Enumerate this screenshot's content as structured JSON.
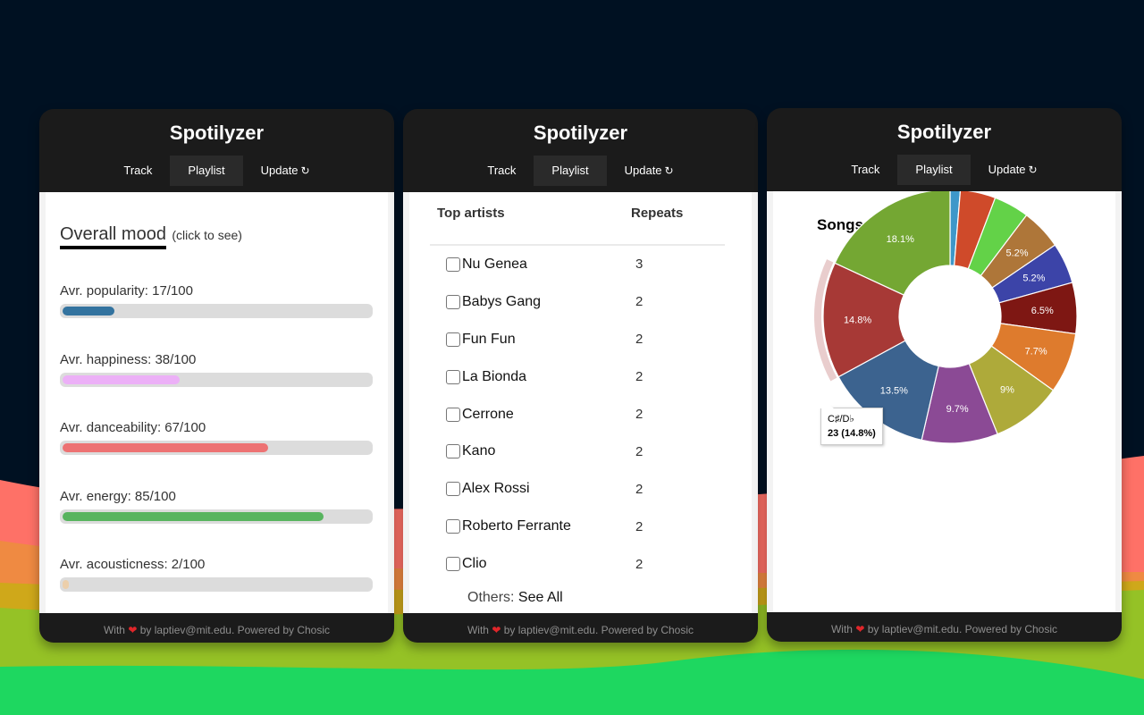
{
  "app": {
    "title": "Spotilyzer",
    "nav": [
      {
        "label": "Track",
        "active": false
      },
      {
        "label": "Playlist",
        "active": true
      },
      {
        "label": "Update",
        "icon": "refresh-icon"
      }
    ],
    "footer": {
      "prefix": "With",
      "heart": "❤",
      "suffix": "by laptiev@mit.edu. Powered by Chosic"
    }
  },
  "mood_panel": {
    "title": "Overall mood",
    "hint": "(click to see)",
    "metrics": [
      {
        "label": "Avr. popularity: 17/100",
        "value": 17,
        "color": "#33739f"
      },
      {
        "label": "Avr. happiness: 38/100",
        "value": 38,
        "color": "#ecb0f7"
      },
      {
        "label": "Avr. danceability: 67/100",
        "value": 67,
        "color": "#ed7273"
      },
      {
        "label": "Avr. energy: 85/100",
        "value": 85,
        "color": "#58b45f"
      },
      {
        "label": "Avr. acousticness: 2/100",
        "value": 2,
        "color": "#eccfab"
      }
    ]
  },
  "artists_panel": {
    "headers": {
      "artist": "Top artists",
      "repeats": "Repeats"
    },
    "rows": [
      {
        "name": "Nu Genea",
        "repeats": "3"
      },
      {
        "name": "Babys Gang",
        "repeats": "2"
      },
      {
        "name": "Fun Fun",
        "repeats": "2"
      },
      {
        "name": "La Bionda",
        "repeats": "2"
      },
      {
        "name": "Cerrone",
        "repeats": "2"
      },
      {
        "name": "Kano",
        "repeats": "2"
      },
      {
        "name": "Alex Rossi",
        "repeats": "2"
      },
      {
        "name": "Roberto Ferrante",
        "repeats": "2"
      },
      {
        "name": "Clio",
        "repeats": "2"
      }
    ],
    "others_label": "Others:",
    "see_all": "See All"
  },
  "keys_panel": {
    "title": "Songs Keys",
    "tooltip": {
      "key": "C♯/D♭",
      "value": "23 (14.8%)"
    }
  },
  "chart_data": {
    "type": "pie",
    "title": "Songs Keys",
    "donut": true,
    "slices": [
      {
        "label": "",
        "value": 1.3,
        "display": "",
        "color": "#3e97c9"
      },
      {
        "label": "",
        "value": 4.5,
        "display": "",
        "color": "#cf4a2a"
      },
      {
        "label": "",
        "value": 4.5,
        "display": "",
        "color": "#63d248"
      },
      {
        "label": "",
        "value": 5.2,
        "display": "5.2%",
        "color": "#ae7639"
      },
      {
        "label": "",
        "value": 5.2,
        "display": "5.2%",
        "color": "#3c44a8"
      },
      {
        "label": "",
        "value": 6.5,
        "display": "6.5%",
        "color": "#7e1713"
      },
      {
        "label": "",
        "value": 7.7,
        "display": "7.7%",
        "color": "#de7b2d"
      },
      {
        "label": "",
        "value": 9.0,
        "display": "9%",
        "color": "#aeaa3a"
      },
      {
        "label": "",
        "value": 9.7,
        "display": "9.7%",
        "color": "#8b4a95"
      },
      {
        "label": "",
        "value": 13.5,
        "display": "13.5%",
        "color": "#3c638f"
      },
      {
        "label": "C♯/D♭",
        "value": 14.8,
        "count": 23,
        "display": "14.8%",
        "color": "#a73936",
        "highlighted": true
      },
      {
        "label": "",
        "value": 18.1,
        "display": "18.1%",
        "color": "#74a733"
      }
    ]
  }
}
